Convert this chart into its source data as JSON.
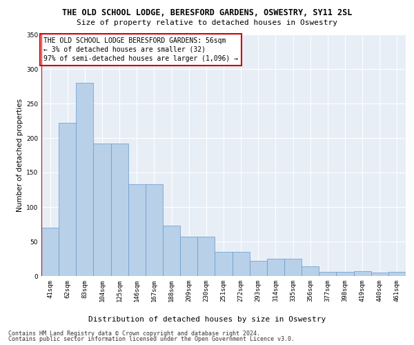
{
  "title": "THE OLD SCHOOL LODGE, BERESFORD GARDENS, OSWESTRY, SY11 2SL",
  "subtitle": "Size of property relative to detached houses in Oswestry",
  "xlabel": "Distribution of detached houses by size in Oswestry",
  "ylabel": "Number of detached properties",
  "categories": [
    "41sqm",
    "62sqm",
    "83sqm",
    "104sqm",
    "125sqm",
    "146sqm",
    "167sqm",
    "188sqm",
    "209sqm",
    "230sqm",
    "251sqm",
    "272sqm",
    "293sqm",
    "314sqm",
    "335sqm",
    "356sqm",
    "377sqm",
    "398sqm",
    "419sqm",
    "440sqm",
    "461sqm"
  ],
  "values": [
    70,
    222,
    280,
    192,
    192,
    133,
    133,
    73,
    57,
    57,
    35,
    35,
    22,
    25,
    25,
    14,
    6,
    6,
    7,
    5,
    6
  ],
  "bar_color": "#b8d0e8",
  "bar_edge_color": "#6699cc",
  "annotation_box_text": "THE OLD SCHOOL LODGE BERESFORD GARDENS: 56sqm\n← 3% of detached houses are smaller (32)\n97% of semi-detached houses are larger (1,096) →",
  "annotation_box_color": "#ffffff",
  "annotation_box_edge_color": "#cc0000",
  "vline_color": "#cc0000",
  "vline_x": -0.5,
  "ylim": [
    0,
    350
  ],
  "yticks": [
    0,
    50,
    100,
    150,
    200,
    250,
    300,
    350
  ],
  "footer1": "Contains HM Land Registry data © Crown copyright and database right 2024.",
  "footer2": "Contains public sector information licensed under the Open Government Licence v3.0.",
  "background_color": "#e8eef6",
  "grid_color": "#ffffff",
  "title_fontsize": 8.5,
  "subtitle_fontsize": 8,
  "xlabel_fontsize": 8,
  "ylabel_fontsize": 7.5,
  "tick_fontsize": 6.5,
  "annotation_fontsize": 7,
  "footer_fontsize": 6
}
